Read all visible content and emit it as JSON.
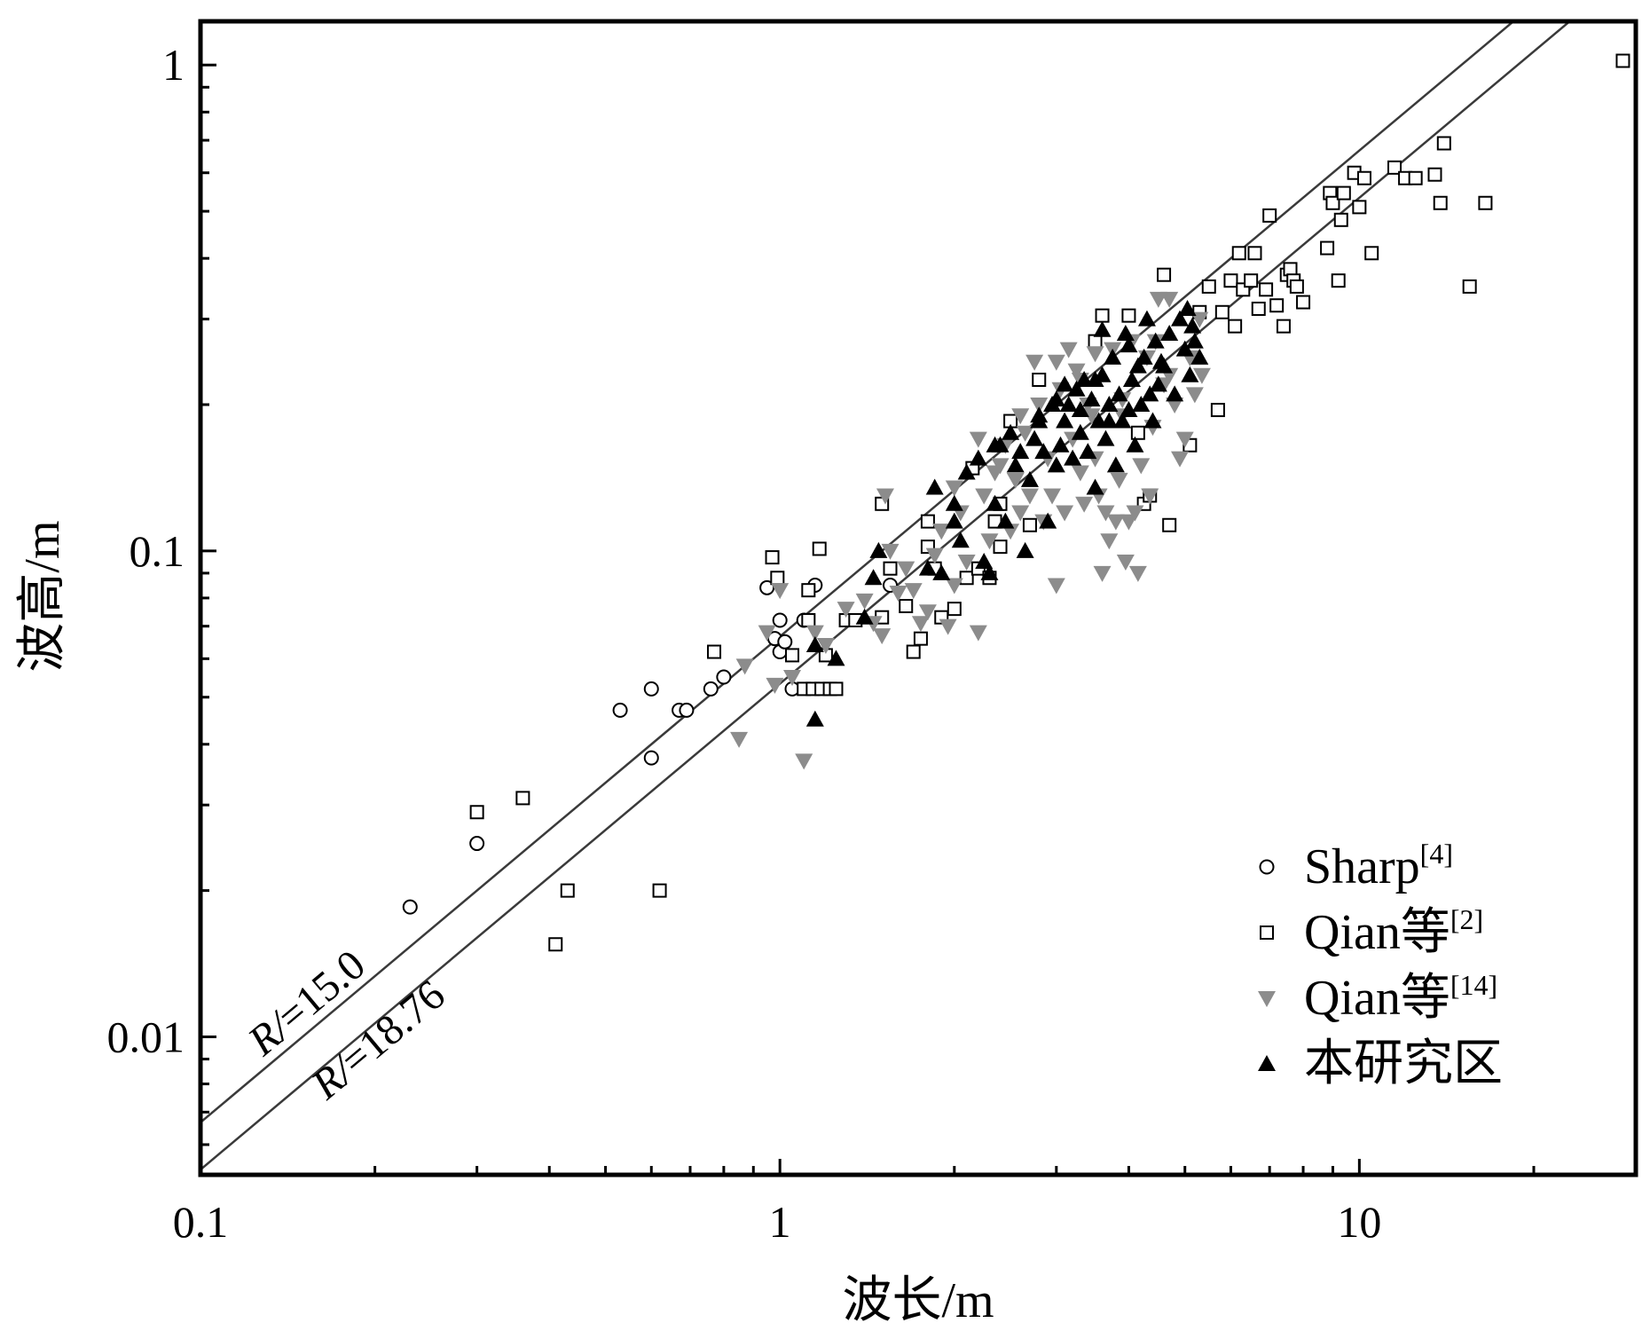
{
  "chart_data": {
    "type": "scatter",
    "title": "",
    "xlabel": "波长/m",
    "ylabel": "波高/m",
    "xscale": "log",
    "yscale": "log",
    "xlim": [
      0.1,
      30
    ],
    "ylim": [
      0.0052,
      1.23
    ],
    "x_ticks": [
      0.1,
      1,
      10
    ],
    "x_tick_labels": [
      "0.1",
      "1",
      "10"
    ],
    "y_ticks": [
      0.01,
      0.1,
      1
    ],
    "y_tick_labels": [
      "0.01",
      "0.1",
      "1"
    ],
    "grid": false,
    "legend_position": "bottom-right",
    "reference_lines": [
      {
        "label_prefix": "R/",
        "label_value": "=15.0",
        "ratio": 15.0,
        "text": "R/l=15.0"
      },
      {
        "label_prefix": "R/",
        "label_value": "=18.76",
        "ratio": 18.76,
        "text": "R/l=18.76"
      }
    ],
    "series": [
      {
        "name": "Sharp",
        "ref": "[4]",
        "marker": "circle-open",
        "color": "#000000",
        "points": [
          [
            0.23,
            0.0185
          ],
          [
            0.3,
            0.025
          ],
          [
            0.53,
            0.047
          ],
          [
            0.6,
            0.052
          ],
          [
            0.6,
            0.0375
          ],
          [
            0.67,
            0.047
          ],
          [
            0.69,
            0.047
          ],
          [
            0.76,
            0.052
          ],
          [
            0.8,
            0.055
          ],
          [
            0.95,
            0.084
          ],
          [
            0.98,
            0.066
          ],
          [
            1.0,
            0.072
          ],
          [
            1.0,
            0.062
          ],
          [
            1.02,
            0.065
          ],
          [
            1.05,
            0.052
          ],
          [
            1.1,
            0.072
          ],
          [
            1.15,
            0.085
          ],
          [
            1.55,
            0.085
          ]
        ]
      },
      {
        "name": "Qian等",
        "ref": "[2]",
        "marker": "square-open",
        "color": "#000000",
        "points": [
          [
            0.3,
            0.029
          ],
          [
            0.36,
            0.031
          ],
          [
            0.41,
            0.0155
          ],
          [
            0.43,
            0.02
          ],
          [
            0.62,
            0.02
          ],
          [
            0.77,
            0.062
          ],
          [
            0.97,
            0.097
          ],
          [
            0.99,
            0.088
          ],
          [
            1.05,
            0.061
          ],
          [
            1.1,
            0.052
          ],
          [
            1.12,
            0.072
          ],
          [
            1.12,
            0.083
          ],
          [
            1.14,
            0.052
          ],
          [
            1.17,
            0.101
          ],
          [
            1.18,
            0.052
          ],
          [
            1.2,
            0.061
          ],
          [
            1.22,
            0.052
          ],
          [
            1.25,
            0.052
          ],
          [
            1.3,
            0.072
          ],
          [
            1.35,
            0.072
          ],
          [
            1.5,
            0.125
          ],
          [
            1.5,
            0.073
          ],
          [
            1.55,
            0.092
          ],
          [
            1.65,
            0.077
          ],
          [
            1.7,
            0.062
          ],
          [
            1.75,
            0.066
          ],
          [
            1.8,
            0.115
          ],
          [
            1.8,
            0.102
          ],
          [
            1.85,
            0.092
          ],
          [
            1.9,
            0.073
          ],
          [
            2.0,
            0.076
          ],
          [
            2.1,
            0.088
          ],
          [
            2.15,
            0.148
          ],
          [
            2.2,
            0.092
          ],
          [
            2.3,
            0.088
          ],
          [
            2.35,
            0.115
          ],
          [
            2.4,
            0.102
          ],
          [
            2.4,
            0.125
          ],
          [
            2.5,
            0.185
          ],
          [
            2.7,
            0.113
          ],
          [
            2.8,
            0.225
          ],
          [
            3.5,
            0.27
          ],
          [
            3.6,
            0.305
          ],
          [
            4.0,
            0.305
          ],
          [
            4.15,
            0.175
          ],
          [
            4.25,
            0.125
          ],
          [
            4.35,
            0.13
          ],
          [
            4.6,
            0.37
          ],
          [
            4.7,
            0.113
          ],
          [
            5.1,
            0.165
          ],
          [
            5.3,
            0.31
          ],
          [
            5.5,
            0.35
          ],
          [
            5.7,
            0.195
          ],
          [
            5.8,
            0.31
          ],
          [
            6.0,
            0.36
          ],
          [
            6.1,
            0.29
          ],
          [
            6.2,
            0.41
          ],
          [
            6.3,
            0.345
          ],
          [
            6.5,
            0.36
          ],
          [
            6.6,
            0.41
          ],
          [
            6.7,
            0.315
          ],
          [
            6.9,
            0.345
          ],
          [
            7.0,
            0.49
          ],
          [
            7.2,
            0.32
          ],
          [
            7.4,
            0.29
          ],
          [
            7.5,
            0.37
          ],
          [
            7.6,
            0.38
          ],
          [
            7.7,
            0.36
          ],
          [
            7.8,
            0.35
          ],
          [
            8.0,
            0.325
          ],
          [
            8.8,
            0.42
          ],
          [
            8.9,
            0.545
          ],
          [
            9.0,
            0.52
          ],
          [
            9.2,
            0.36
          ],
          [
            9.3,
            0.48
          ],
          [
            9.4,
            0.545
          ],
          [
            9.8,
            0.6
          ],
          [
            10.0,
            0.51
          ],
          [
            10.2,
            0.585
          ],
          [
            10.5,
            0.41
          ],
          [
            11.5,
            0.615
          ],
          [
            12.0,
            0.585
          ],
          [
            12.5,
            0.585
          ],
          [
            13.5,
            0.595
          ],
          [
            13.8,
            0.52
          ],
          [
            14.0,
            0.69
          ],
          [
            15.5,
            0.35
          ],
          [
            16.5,
            0.52
          ],
          [
            28.5,
            1.02
          ]
        ]
      },
      {
        "name": "Qian等",
        "ref": "[14]",
        "marker": "triangle-down-filled",
        "color": "#8c8c8c",
        "points": [
          [
            0.85,
            0.041
          ],
          [
            0.87,
            0.058
          ],
          [
            0.95,
            0.068
          ],
          [
            0.98,
            0.053
          ],
          [
            1.0,
            0.083
          ],
          [
            1.05,
            0.055
          ],
          [
            1.1,
            0.037
          ],
          [
            1.15,
            0.068
          ],
          [
            1.2,
            0.064
          ],
          [
            1.3,
            0.076
          ],
          [
            1.4,
            0.079
          ],
          [
            1.45,
            0.071
          ],
          [
            1.5,
            0.067
          ],
          [
            1.52,
            0.13
          ],
          [
            1.55,
            0.1
          ],
          [
            1.6,
            0.082
          ],
          [
            1.65,
            0.092
          ],
          [
            1.7,
            0.083
          ],
          [
            1.75,
            0.071
          ],
          [
            1.8,
            0.075
          ],
          [
            1.85,
            0.098
          ],
          [
            1.9,
            0.11
          ],
          [
            1.95,
            0.07
          ],
          [
            2.0,
            0.085
          ],
          [
            2.05,
            0.12
          ],
          [
            2.1,
            0.095
          ],
          [
            2.2,
            0.068
          ],
          [
            2.25,
            0.13
          ],
          [
            2.3,
            0.105
          ],
          [
            2.4,
            0.15
          ],
          [
            2.45,
            0.165
          ],
          [
            2.5,
            0.11
          ],
          [
            2.55,
            0.14
          ],
          [
            2.6,
            0.12
          ],
          [
            2.65,
            0.175
          ],
          [
            2.7,
            0.13
          ],
          [
            2.75,
            0.245
          ],
          [
            2.8,
            0.2
          ],
          [
            2.85,
            0.115
          ],
          [
            2.9,
            0.155
          ],
          [
            2.95,
            0.13
          ],
          [
            3.0,
            0.085
          ],
          [
            3.05,
            0.215
          ],
          [
            3.1,
            0.12
          ],
          [
            3.15,
            0.26
          ],
          [
            3.2,
            0.17
          ],
          [
            3.25,
            0.235
          ],
          [
            3.3,
            0.145
          ],
          [
            3.35,
            0.125
          ],
          [
            3.4,
            0.2
          ],
          [
            3.45,
            0.19
          ],
          [
            3.5,
            0.155
          ],
          [
            3.55,
            0.13
          ],
          [
            3.6,
            0.09
          ],
          [
            3.65,
            0.12
          ],
          [
            3.7,
            0.105
          ],
          [
            3.75,
            0.26
          ],
          [
            3.8,
            0.115
          ],
          [
            3.85,
            0.14
          ],
          [
            3.9,
            0.19
          ],
          [
            3.95,
            0.095
          ],
          [
            4.0,
            0.115
          ],
          [
            4.05,
            0.27
          ],
          [
            4.1,
            0.12
          ],
          [
            4.15,
            0.09
          ],
          [
            4.2,
            0.15
          ],
          [
            4.3,
            0.25
          ],
          [
            4.35,
            0.13
          ],
          [
            4.45,
            0.27
          ],
          [
            4.5,
            0.33
          ],
          [
            4.6,
            0.22
          ],
          [
            4.7,
            0.33
          ],
          [
            4.8,
            0.2
          ],
          [
            4.9,
            0.155
          ],
          [
            5.0,
            0.17
          ],
          [
            5.1,
            0.25
          ],
          [
            5.2,
            0.21
          ],
          [
            5.3,
            0.3
          ],
          [
            5.35,
            0.23
          ],
          [
            2.0,
            0.135
          ],
          [
            2.2,
            0.17
          ],
          [
            1.9,
            0.11
          ],
          [
            2.35,
            0.145
          ],
          [
            2.6,
            0.19
          ],
          [
            3.0,
            0.245
          ],
          [
            3.3,
            0.225
          ],
          [
            3.5,
            0.255
          ],
          [
            3.9,
            0.205
          ],
          [
            4.4,
            0.18
          ],
          [
            4.7,
            0.23
          ]
        ]
      },
      {
        "name": "本研究区",
        "ref": "",
        "marker": "triangle-up-filled",
        "color": "#000000",
        "points": [
          [
            1.15,
            0.045
          ],
          [
            1.15,
            0.064
          ],
          [
            1.25,
            0.06
          ],
          [
            1.4,
            0.073
          ],
          [
            1.45,
            0.088
          ],
          [
            1.48,
            0.1
          ],
          [
            1.8,
            0.092
          ],
          [
            1.85,
            0.135
          ],
          [
            1.9,
            0.09
          ],
          [
            2.0,
            0.125
          ],
          [
            2.0,
            0.115
          ],
          [
            2.05,
            0.105
          ],
          [
            2.1,
            0.145
          ],
          [
            2.2,
            0.155
          ],
          [
            2.25,
            0.095
          ],
          [
            2.3,
            0.09
          ],
          [
            2.35,
            0.125
          ],
          [
            2.4,
            0.165
          ],
          [
            2.45,
            0.115
          ],
          [
            2.5,
            0.175
          ],
          [
            2.55,
            0.15
          ],
          [
            2.6,
            0.16
          ],
          [
            2.65,
            0.1
          ],
          [
            2.7,
            0.14
          ],
          [
            2.75,
            0.17
          ],
          [
            2.8,
            0.185
          ],
          [
            2.85,
            0.16
          ],
          [
            2.9,
            0.115
          ],
          [
            2.95,
            0.2
          ],
          [
            3.0,
            0.15
          ],
          [
            3.05,
            0.165
          ],
          [
            3.1,
            0.185
          ],
          [
            3.15,
            0.2
          ],
          [
            3.2,
            0.155
          ],
          [
            3.25,
            0.215
          ],
          [
            3.3,
            0.175
          ],
          [
            3.35,
            0.225
          ],
          [
            3.4,
            0.16
          ],
          [
            3.45,
            0.205
          ],
          [
            3.5,
            0.135
          ],
          [
            3.55,
            0.185
          ],
          [
            3.6,
            0.23
          ],
          [
            3.65,
            0.17
          ],
          [
            3.7,
            0.2
          ],
          [
            3.75,
            0.25
          ],
          [
            3.8,
            0.15
          ],
          [
            3.85,
            0.21
          ],
          [
            3.9,
            0.185
          ],
          [
            3.95,
            0.28
          ],
          [
            4.0,
            0.195
          ],
          [
            4.05,
            0.225
          ],
          [
            4.1,
            0.165
          ],
          [
            4.15,
            0.24
          ],
          [
            4.2,
            0.2
          ],
          [
            4.25,
            0.25
          ],
          [
            4.3,
            0.3
          ],
          [
            4.35,
            0.21
          ],
          [
            4.4,
            0.185
          ],
          [
            4.45,
            0.27
          ],
          [
            4.5,
            0.22
          ],
          [
            4.55,
            0.245
          ],
          [
            4.6,
            0.24
          ],
          [
            4.7,
            0.28
          ],
          [
            4.8,
            0.21
          ],
          [
            4.9,
            0.3
          ],
          [
            5.0,
            0.26
          ],
          [
            5.05,
            0.315
          ],
          [
            5.1,
            0.23
          ],
          [
            5.15,
            0.29
          ],
          [
            5.2,
            0.27
          ],
          [
            5.3,
            0.25
          ],
          [
            3.3,
            0.195
          ],
          [
            3.5,
            0.225
          ],
          [
            3.7,
            0.185
          ],
          [
            2.8,
            0.19
          ],
          [
            3.1,
            0.22
          ],
          [
            3.0,
            0.205
          ],
          [
            3.6,
            0.285
          ],
          [
            4.0,
            0.265
          ],
          [
            2.35,
            0.165
          ]
        ]
      }
    ]
  }
}
